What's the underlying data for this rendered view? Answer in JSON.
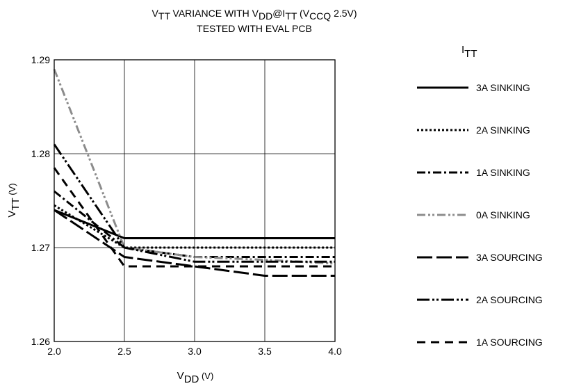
{
  "chart_data": {
    "type": "line",
    "title": {
      "line1": [
        {
          "text": "V",
          "sub": "TT"
        },
        {
          "text": " VARIANCE WITH V",
          "sub": "DD"
        },
        {
          "text": "@I",
          "sub": "TT"
        },
        {
          "text": " (V",
          "sub": "CCQ"
        },
        {
          "text": " 2.5V)",
          "sub": ""
        }
      ],
      "line2": "TESTED WITH EVAL PCB"
    },
    "xlabel": {
      "main": "V",
      "sub": "DD",
      "tail": " (V)"
    },
    "ylabel": {
      "main": "V",
      "sub": "TT",
      "tail": " (V)"
    },
    "xlim": [
      2.0,
      4.0
    ],
    "ylim": [
      1.26,
      1.29
    ],
    "x_ticks": [
      "2.0",
      "2.5",
      "3.0",
      "3.5",
      "4.0"
    ],
    "y_ticks": [
      "1.26",
      "1.27",
      "1.28",
      "1.29"
    ],
    "grid": true,
    "legend_title": {
      "main": "I",
      "sub": "TT"
    },
    "legend_position": "right",
    "series": [
      {
        "name": "3A SINKING",
        "color": "#000000",
        "dash": "solid",
        "x": [
          2.0,
          2.5,
          3.0,
          3.5,
          4.0
        ],
        "y": [
          1.274,
          1.271,
          1.271,
          1.271,
          1.271
        ]
      },
      {
        "name": "2A SINKING",
        "color": "#000000",
        "dash": "dotted",
        "x": [
          2.0,
          2.5,
          3.0,
          3.5,
          4.0
        ],
        "y": [
          1.2745,
          1.27,
          1.27,
          1.27,
          1.27
        ]
      },
      {
        "name": "1A SINKING",
        "color": "#000000",
        "dash": "dashdot",
        "x": [
          2.0,
          2.5,
          3.0,
          3.5,
          4.0
        ],
        "y": [
          1.276,
          1.27,
          1.269,
          1.269,
          1.269
        ]
      },
      {
        "name": "0A SINKING",
        "color": "#8c8c8c",
        "dash": "dashdotdot",
        "x": [
          2.0,
          2.5,
          3.0,
          3.5,
          4.0
        ],
        "y": [
          1.289,
          1.27,
          1.269,
          1.2687,
          1.2683
        ]
      },
      {
        "name": "3A SOURCING",
        "color": "#000000",
        "dash": "longdash",
        "x": [
          2.0,
          2.5,
          3.0,
          3.5,
          4.0
        ],
        "y": [
          1.274,
          1.269,
          1.268,
          1.267,
          1.267
        ]
      },
      {
        "name": "2A SOURCING",
        "color": "#000000",
        "dash": "longdashdotdot",
        "x": [
          2.0,
          2.5,
          3.0,
          3.5,
          4.0
        ],
        "y": [
          1.281,
          1.27,
          1.2685,
          1.2685,
          1.2685
        ]
      },
      {
        "name": "1A SOURCING",
        "color": "#000000",
        "dash": "dashed",
        "x": [
          2.0,
          2.5,
          3.0,
          3.5,
          4.0
        ],
        "y": [
          1.2785,
          1.268,
          1.268,
          1.268,
          1.268
        ]
      }
    ]
  }
}
